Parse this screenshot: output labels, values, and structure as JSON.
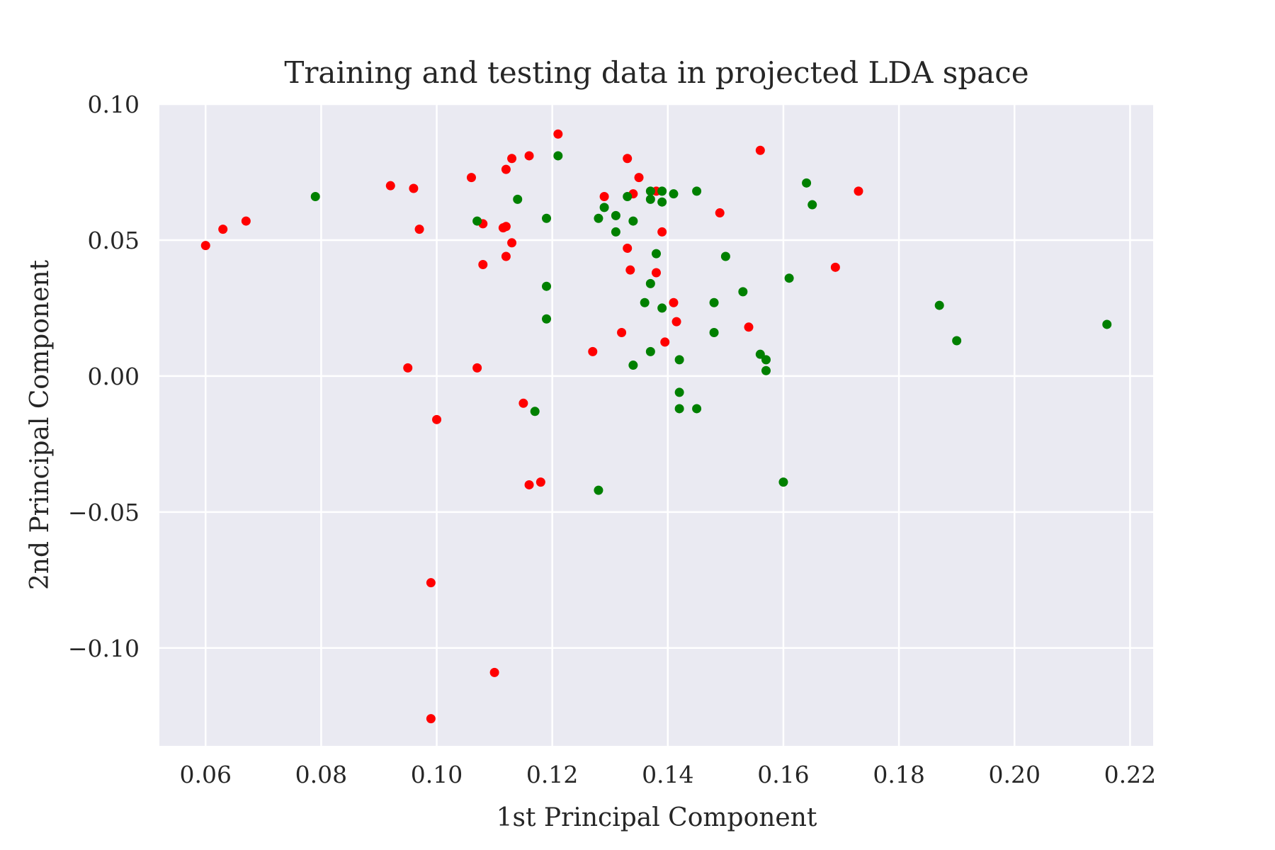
{
  "chart_data": {
    "type": "scatter",
    "title": "Training and testing data in projected LDA space",
    "xlabel": "1st Principal Component",
    "ylabel": "2nd Principal Component",
    "xlim": [
      0.052,
      0.224
    ],
    "ylim": [
      -0.136,
      0.1
    ],
    "x_ticks": [
      0.06,
      0.08,
      0.1,
      0.12,
      0.14,
      0.16,
      0.18,
      0.2,
      0.22
    ],
    "x_tick_labels": [
      "0.06",
      "0.08",
      "0.10",
      "0.12",
      "0.14",
      "0.16",
      "0.18",
      "0.20",
      "0.22"
    ],
    "y_ticks": [
      0.1,
      0.05,
      0.0,
      -0.05,
      -0.1
    ],
    "y_tick_labels": [
      "0.10",
      "0.05",
      "0.00",
      "−0.05",
      "−0.10"
    ],
    "grid": true,
    "background": "#eaeaf2",
    "series": [
      {
        "color": "#ff0000",
        "points": [
          [
            0.06,
            0.048
          ],
          [
            0.063,
            0.054
          ],
          [
            0.067,
            0.057
          ],
          [
            0.092,
            0.07
          ],
          [
            0.096,
            0.069
          ],
          [
            0.097,
            0.054
          ],
          [
            0.095,
            0.003
          ],
          [
            0.1,
            -0.016
          ],
          [
            0.099,
            -0.076
          ],
          [
            0.099,
            -0.126
          ],
          [
            0.106,
            0.073
          ],
          [
            0.108,
            0.056
          ],
          [
            0.108,
            0.041
          ],
          [
            0.107,
            0.003
          ],
          [
            0.112,
            0.055
          ],
          [
            0.1115,
            0.0545
          ],
          [
            0.112,
            0.076
          ],
          [
            0.113,
            0.08
          ],
          [
            0.113,
            0.049
          ],
          [
            0.112,
            0.044
          ],
          [
            0.11,
            -0.109
          ],
          [
            0.115,
            -0.01
          ],
          [
            0.116,
            0.081
          ],
          [
            0.116,
            -0.04
          ],
          [
            0.118,
            -0.039
          ],
          [
            0.121,
            0.089
          ],
          [
            0.127,
            0.009
          ],
          [
            0.129,
            0.066
          ],
          [
            0.132,
            0.016
          ],
          [
            0.133,
            0.08
          ],
          [
            0.133,
            0.047
          ],
          [
            0.1335,
            0.039
          ],
          [
            0.134,
            0.067
          ],
          [
            0.135,
            0.073
          ],
          [
            0.138,
            0.068
          ],
          [
            0.138,
            0.038
          ],
          [
            0.139,
            0.053
          ],
          [
            0.1395,
            0.0125
          ],
          [
            0.141,
            0.027
          ],
          [
            0.1415,
            0.02
          ],
          [
            0.149,
            0.06
          ],
          [
            0.154,
            0.018
          ],
          [
            0.156,
            0.083
          ],
          [
            0.169,
            0.04
          ],
          [
            0.173,
            0.068
          ]
        ]
      },
      {
        "color": "#008000",
        "points": [
          [
            0.079,
            0.066
          ],
          [
            0.107,
            0.057
          ],
          [
            0.114,
            0.065
          ],
          [
            0.117,
            -0.013
          ],
          [
            0.119,
            0.058
          ],
          [
            0.119,
            0.033
          ],
          [
            0.119,
            0.021
          ],
          [
            0.121,
            0.081
          ],
          [
            0.128,
            0.058
          ],
          [
            0.128,
            -0.042
          ],
          [
            0.129,
            0.062
          ],
          [
            0.131,
            0.059
          ],
          [
            0.131,
            0.053
          ],
          [
            0.133,
            0.066
          ],
          [
            0.134,
            0.057
          ],
          [
            0.134,
            0.004
          ],
          [
            0.137,
            0.068
          ],
          [
            0.137,
            0.065
          ],
          [
            0.137,
            0.034
          ],
          [
            0.136,
            0.027
          ],
          [
            0.137,
            0.009
          ],
          [
            0.138,
            0.045
          ],
          [
            0.139,
            0.068
          ],
          [
            0.139,
            0.064
          ],
          [
            0.139,
            0.025
          ],
          [
            0.141,
            0.067
          ],
          [
            0.142,
            0.006
          ],
          [
            0.142,
            -0.006
          ],
          [
            0.142,
            -0.012
          ],
          [
            0.145,
            0.068
          ],
          [
            0.145,
            -0.012
          ],
          [
            0.148,
            0.027
          ],
          [
            0.148,
            0.016
          ],
          [
            0.15,
            0.044
          ],
          [
            0.153,
            0.031
          ],
          [
            0.156,
            0.008
          ],
          [
            0.157,
            0.006
          ],
          [
            0.157,
            0.002
          ],
          [
            0.16,
            -0.039
          ],
          [
            0.161,
            0.036
          ],
          [
            0.164,
            0.071
          ],
          [
            0.165,
            0.063
          ],
          [
            0.187,
            0.026
          ],
          [
            0.19,
            0.013
          ],
          [
            0.216,
            0.019
          ]
        ]
      }
    ]
  }
}
